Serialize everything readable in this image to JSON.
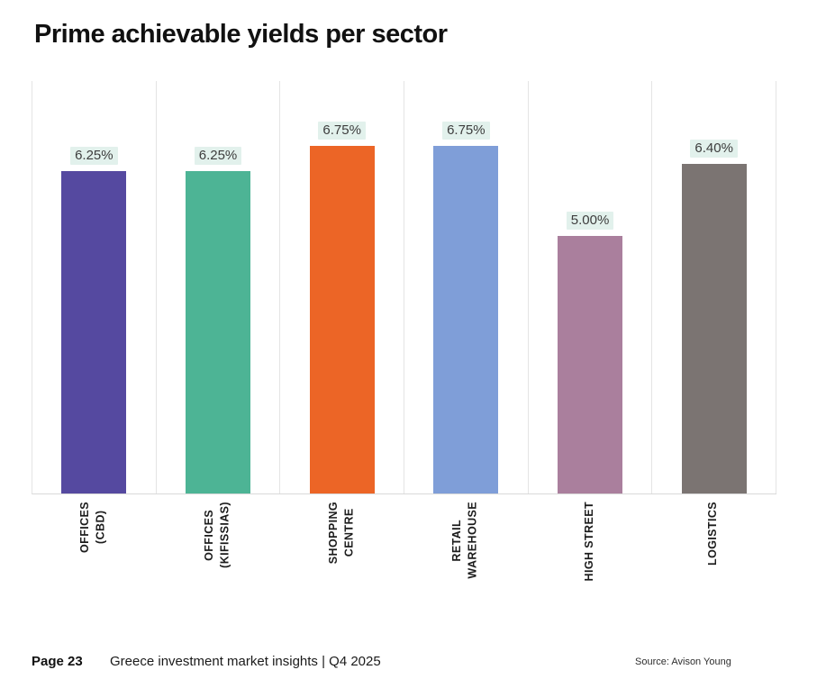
{
  "page": {
    "title": "Prime achievable yields per sector"
  },
  "chart_data": {
    "type": "bar",
    "title": "Prime achievable yields per sector",
    "categories": [
      "OFFICES\n(CBD)",
      "OFFICES\n(KIFISSIAS)",
      "SHOPPING\nCENTRE",
      "RETAIL\nWAREHOUSE",
      "HIGH STREET",
      "LOGISTICS"
    ],
    "values": [
      6.25,
      6.25,
      6.75,
      6.75,
      5.0,
      6.4
    ],
    "display_values": [
      "6.25%",
      "6.25%",
      "6.75%",
      "6.75%",
      "5.00%",
      "6.40%"
    ],
    "unit": "%",
    "colors": [
      "#5549a0",
      "#4db495",
      "#ec6526",
      "#7f9ed8",
      "#aa7f9d",
      "#7b7472"
    ],
    "label_bg": "#e2f1ec",
    "ylim": [
      0,
      8
    ],
    "xlabel": "",
    "ylabel": "",
    "legend": "none",
    "grid": "vertical-column-separators"
  },
  "footer": {
    "page_label": "Page 23",
    "doc_title": "Greece investment market insights | Q4 2025",
    "source": "Source: Avison Young"
  }
}
